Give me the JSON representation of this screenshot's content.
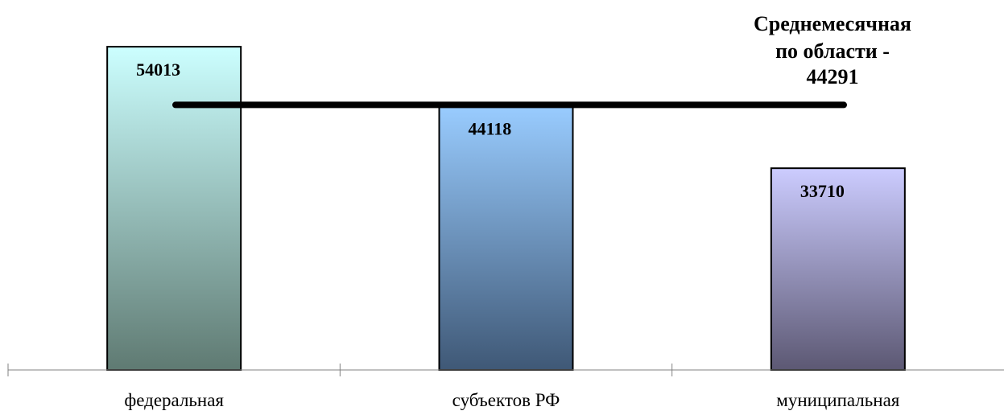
{
  "chart_data": {
    "type": "bar",
    "title": "",
    "xlabel": "",
    "ylabel": "",
    "categories": [
      "федеральная",
      "субъектов РФ",
      "муниципальная"
    ],
    "values": [
      54013,
      44118,
      33710
    ],
    "value_labels": [
      "54013",
      "44118",
      "33710"
    ],
    "ylim": [
      0,
      55100
    ],
    "grid": false,
    "bar_colors": [
      {
        "top": "#ccffff",
        "bottom": "#5f7a72"
      },
      {
        "top": "#99ccff",
        "bottom": "#3f5876"
      },
      {
        "top": "#ccccff",
        "bottom": "#5c5873"
      }
    ],
    "bar_outline_color": "#000000",
    "reference_line": {
      "value": 44291,
      "label_lines": [
        "Среднемесячная",
        "по области -",
        "44291"
      ],
      "color": "#000000"
    }
  }
}
